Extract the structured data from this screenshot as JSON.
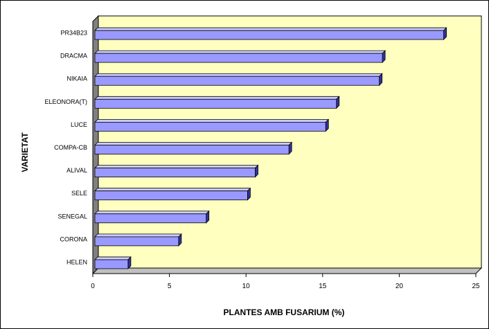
{
  "chart_data": {
    "type": "bar",
    "orientation": "horizontal",
    "three_d": true,
    "categories": [
      "PR34B23",
      "DRACMA",
      "NIKAIA",
      "ELEONORA(T)",
      "LUCE",
      "COMPA-CB",
      "ALIVAL",
      "SELE",
      "SENEGAL",
      "CORONA",
      "HELEN"
    ],
    "values": [
      22.9,
      18.9,
      18.7,
      15.9,
      15.2,
      12.8,
      10.6,
      10.1,
      7.4,
      5.6,
      2.3
    ],
    "xlabel": "PLANTES AMB FUSARIUM (%)",
    "ylabel": "VARIETAT",
    "xlim": [
      0,
      25
    ],
    "xticks": [
      "0",
      "5",
      "10",
      "15",
      "20",
      "25"
    ],
    "grid": false,
    "legend": "none",
    "colors": {
      "bar_face": "#9999ff",
      "bar_top": "#ccccff",
      "bar_side": "#333399",
      "plot_back": "#ffffc0",
      "plot_side": "#808080",
      "plot_floor": "#c0c0c0",
      "outline": "#000000"
    }
  }
}
